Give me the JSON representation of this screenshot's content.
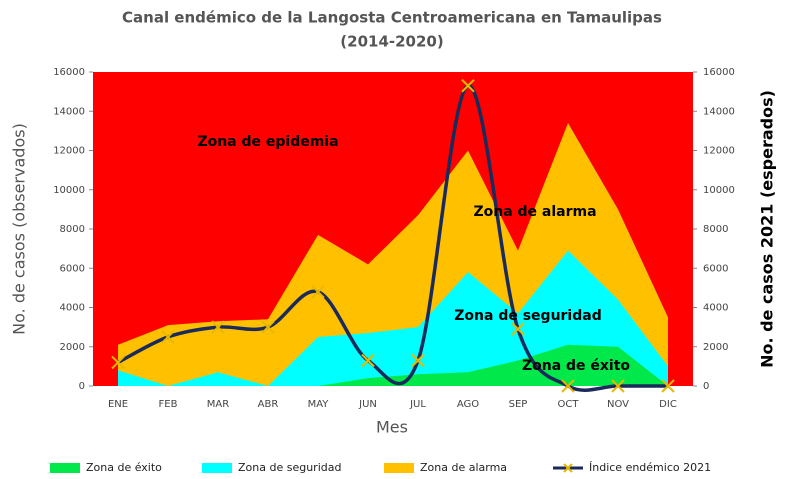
{
  "chart_data": {
    "type": "area",
    "title": "Canal endémico de la Langosta Centroamericana en Tamaulipas",
    "subtitle": "(2014-2020)",
    "xlabel": "Mes",
    "ylabel": "No. de casos (observados)",
    "y2label": "No. de casos 2021 (esperados)",
    "background_zone": {
      "name": "Zona de epidemia",
      "color": "#ff0000"
    },
    "annotations": [
      "Zona de epidemia",
      "Zona de alarma",
      "Zona de seguridad",
      "Zona de éxito"
    ],
    "categories": [
      "ENE",
      "FEB",
      "MAR",
      "ABR",
      "MAY",
      "JUN",
      "JUL",
      "AGO",
      "SEP",
      "OCT",
      "NOV",
      "DIC"
    ],
    "series": [
      {
        "name": "Zona de alarma",
        "color": "#ffc000",
        "values": [
          2100,
          3100,
          3300,
          3400,
          7700,
          6200,
          8700,
          12000,
          6900,
          13400,
          9000,
          3500
        ]
      },
      {
        "name": "Zona de seguridad",
        "color": "#00ffff",
        "values": [
          800,
          0,
          700,
          0,
          2500,
          2700,
          3000,
          5800,
          3700,
          6900,
          4400,
          1000
        ]
      },
      {
        "name": "Zona de éxito",
        "color": "#00e84a",
        "values": [
          0,
          0,
          0,
          0,
          0,
          400,
          600,
          700,
          1300,
          2100,
          2000,
          0
        ]
      },
      {
        "name": "Índice endémico 2021",
        "color": "#1a2a5a",
        "marker_color": "#e6b800",
        "type": "line",
        "axis": "y2",
        "values": [
          1200,
          2500,
          3000,
          3000,
          4800,
          1300,
          1300,
          15300,
          2900,
          0,
          0,
          0
        ]
      }
    ],
    "legend_order": [
      2,
      1,
      0,
      3
    ],
    "ylim": [
      0,
      16000
    ],
    "yticks": [
      0,
      2000,
      4000,
      6000,
      8000,
      10000,
      12000,
      14000,
      16000
    ],
    "y2lim": [
      0,
      16000
    ],
    "y2ticks": [
      0,
      2000,
      4000,
      6000,
      8000,
      10000,
      12000,
      14000,
      16000
    ]
  }
}
